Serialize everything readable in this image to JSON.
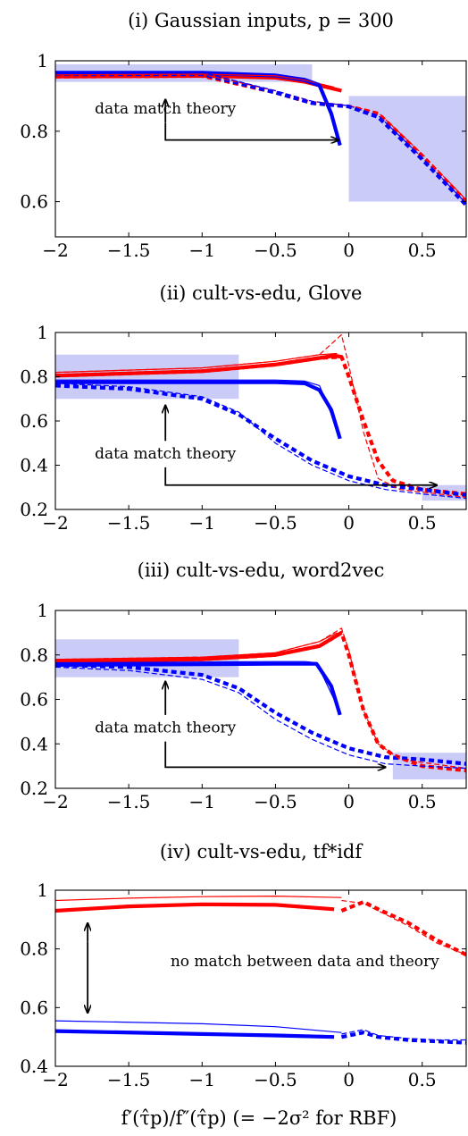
{
  "colors": {
    "red": "#ff0000",
    "blue": "#0000ff",
    "match_box": "#c8c8f8",
    "axis": "#000000"
  },
  "xlabel": "f′(τ̂p)/f″(τ̂p) (= −2σ² for RBF)",
  "chart_data": [
    {
      "type": "line",
      "title": "(i) Gaussian inputs, p = 300",
      "xlim": [
        -2,
        0.8
      ],
      "ylim": [
        0.5,
        1
      ],
      "xticks": [
        -2,
        -1.5,
        -1,
        -0.5,
        0,
        0.5
      ],
      "xtick_labels": [
        "−2",
        "−1.5",
        "−1",
        "−0.5",
        "0",
        "0.5"
      ],
      "yticks": [
        0.6,
        0.8,
        1
      ],
      "ytick_labels": [
        "0.6",
        "0.8",
        "1"
      ],
      "annotation": "data match theory",
      "annotation_kind": "two-boxes",
      "boxes": [
        {
          "x": [
            -2,
            -0.25
          ],
          "y": [
            0.94,
            0.99
          ]
        },
        {
          "x": [
            0,
            0.8
          ],
          "y": [
            0.6,
            0.9
          ]
        }
      ],
      "series": [
        {
          "color": "red",
          "style": "solid",
          "width": "thick",
          "x": [
            -2,
            -1,
            -0.5,
            -0.3,
            -0.1,
            -0.05
          ],
          "y": [
            0.955,
            0.957,
            0.952,
            0.94,
            0.92,
            0.915
          ]
        },
        {
          "color": "blue",
          "style": "solid",
          "width": "thick",
          "x": [
            -2,
            -1,
            -0.5,
            -0.3,
            -0.2,
            -0.12,
            -0.06
          ],
          "y": [
            0.965,
            0.965,
            0.958,
            0.945,
            0.93,
            0.85,
            0.76
          ]
        },
        {
          "color": "red",
          "style": "dashed",
          "width": "thick",
          "x": [
            -2,
            -1,
            -0.5,
            -0.25,
            0,
            0.2,
            0.5,
            0.8
          ],
          "y": [
            0.955,
            0.957,
            0.91,
            0.88,
            0.87,
            0.85,
            0.73,
            0.6
          ]
        },
        {
          "color": "blue",
          "style": "dashed",
          "width": "thick",
          "x": [
            -2,
            -1,
            -0.5,
            -0.25,
            0,
            0.2,
            0.5,
            0.8
          ],
          "y": [
            0.962,
            0.962,
            0.91,
            0.88,
            0.87,
            0.84,
            0.72,
            0.59
          ]
        },
        {
          "color": "red",
          "style": "solid",
          "width": "thin",
          "x": [
            -2,
            -1,
            -0.5,
            -0.3,
            -0.1
          ],
          "y": [
            0.96,
            0.962,
            0.957,
            0.945,
            0.925
          ]
        },
        {
          "color": "blue",
          "style": "solid",
          "width": "thin",
          "x": [
            -2,
            -1,
            -0.5,
            -0.3,
            -0.2,
            -0.08
          ],
          "y": [
            0.97,
            0.97,
            0.962,
            0.95,
            0.935,
            0.8
          ]
        },
        {
          "color": "red",
          "style": "dashed",
          "width": "thin",
          "x": [
            -2,
            -1,
            -0.5,
            -0.25,
            0,
            0.2,
            0.5,
            0.8
          ],
          "y": [
            0.96,
            0.962,
            0.915,
            0.885,
            0.872,
            0.853,
            0.735,
            0.605
          ]
        },
        {
          "color": "blue",
          "style": "dashed",
          "width": "thin",
          "x": [
            -2,
            -1,
            -0.5,
            -0.25,
            0,
            0.2,
            0.5,
            0.8
          ],
          "y": [
            0.967,
            0.967,
            0.915,
            0.885,
            0.872,
            0.845,
            0.725,
            0.595
          ]
        }
      ]
    },
    {
      "type": "line",
      "title": "(ii) cult-vs-edu, Glove",
      "xlim": [
        -2,
        0.8
      ],
      "ylim": [
        0.2,
        1
      ],
      "xticks": [
        -2,
        -1.5,
        -1,
        -0.5,
        0,
        0.5
      ],
      "xtick_labels": [
        "−2",
        "−1.5",
        "−1",
        "−0.5",
        "0",
        "0.5"
      ],
      "yticks": [
        0.2,
        0.4,
        0.6,
        0.8,
        1
      ],
      "ytick_labels": [
        "0.2",
        "0.4",
        "0.6",
        "0.8",
        "1"
      ],
      "annotation": "data match theory",
      "annotation_kind": "two-boxes",
      "boxes": [
        {
          "x": [
            -2,
            -0.75
          ],
          "y": [
            0.7,
            0.9
          ]
        },
        {
          "x": [
            0.5,
            0.8
          ],
          "y": [
            0.24,
            0.31
          ]
        }
      ],
      "series": [
        {
          "color": "red",
          "style": "solid",
          "width": "thick",
          "x": [
            -2,
            -1,
            -0.5,
            -0.2,
            -0.1,
            -0.05
          ],
          "y": [
            0.805,
            0.825,
            0.855,
            0.885,
            0.895,
            0.89
          ]
        },
        {
          "color": "blue",
          "style": "solid",
          "width": "thick",
          "x": [
            -2,
            -1,
            -0.5,
            -0.3,
            -0.2,
            -0.12,
            -0.06
          ],
          "y": [
            0.775,
            0.775,
            0.775,
            0.77,
            0.74,
            0.65,
            0.52
          ]
        },
        {
          "color": "red",
          "style": "dashed",
          "width": "thick",
          "x": [
            -2,
            -1,
            -0.5,
            -0.2,
            -0.05,
            0,
            0.1,
            0.2,
            0.3,
            0.5,
            0.8
          ],
          "y": [
            0.805,
            0.825,
            0.855,
            0.885,
            0.89,
            0.8,
            0.6,
            0.42,
            0.33,
            0.29,
            0.27
          ]
        },
        {
          "color": "blue",
          "style": "dashed",
          "width": "thick",
          "x": [
            -2,
            -1.5,
            -1,
            -0.75,
            -0.5,
            -0.25,
            0,
            0.25,
            0.5,
            0.8
          ],
          "y": [
            0.76,
            0.745,
            0.7,
            0.63,
            0.52,
            0.42,
            0.35,
            0.31,
            0.29,
            0.265
          ]
        },
        {
          "color": "red",
          "style": "solid",
          "width": "thin",
          "x": [
            -2,
            -1,
            -0.5,
            -0.2,
            -0.08
          ],
          "y": [
            0.82,
            0.84,
            0.87,
            0.9,
            0.905
          ]
        },
        {
          "color": "blue",
          "style": "solid",
          "width": "thin",
          "x": [
            -2,
            -1,
            -0.5,
            -0.3,
            -0.2,
            -0.1
          ],
          "y": [
            0.785,
            0.785,
            0.785,
            0.78,
            0.76,
            0.6
          ]
        },
        {
          "color": "red",
          "style": "dashed",
          "width": "thin",
          "x": [
            -2,
            -1,
            -0.5,
            -0.2,
            -0.05,
            0,
            0.1,
            0.2,
            0.35,
            0.8
          ],
          "y": [
            0.82,
            0.84,
            0.87,
            0.9,
            0.99,
            0.85,
            0.55,
            0.34,
            0.29,
            0.255
          ]
        },
        {
          "color": "blue",
          "style": "dashed",
          "width": "thin",
          "x": [
            -2,
            -1.5,
            -1,
            -0.75,
            -0.5,
            -0.25,
            0,
            0.25,
            0.5,
            0.8
          ],
          "y": [
            0.77,
            0.755,
            0.71,
            0.64,
            0.5,
            0.4,
            0.33,
            0.29,
            0.27,
            0.25
          ]
        }
      ]
    },
    {
      "type": "line",
      "title": "(iii) cult-vs-edu, word2vec",
      "xlim": [
        -2,
        0.8
      ],
      "ylim": [
        0.2,
        1
      ],
      "xticks": [
        -2,
        -1.5,
        -1,
        -0.5,
        0,
        0.5
      ],
      "xtick_labels": [
        "−2",
        "−1.5",
        "−1",
        "−0.5",
        "0",
        "0.5"
      ],
      "yticks": [
        0.2,
        0.4,
        0.6,
        0.8,
        1
      ],
      "ytick_labels": [
        "0.2",
        "0.4",
        "0.6",
        "0.8",
        "1"
      ],
      "annotation": "data match theory",
      "annotation_kind": "two-boxes",
      "boxes": [
        {
          "x": [
            -2,
            -0.75
          ],
          "y": [
            0.7,
            0.87
          ]
        },
        {
          "x": [
            0.3,
            0.8
          ],
          "y": [
            0.24,
            0.36
          ]
        }
      ],
      "series": [
        {
          "color": "red",
          "style": "solid",
          "width": "thick",
          "x": [
            -2,
            -1,
            -0.5,
            -0.2,
            -0.1,
            -0.05
          ],
          "y": [
            0.77,
            0.78,
            0.8,
            0.84,
            0.88,
            0.9
          ]
        },
        {
          "color": "blue",
          "style": "solid",
          "width": "thick",
          "x": [
            -2,
            -1,
            -0.5,
            -0.3,
            -0.22,
            -0.12,
            -0.06
          ],
          "y": [
            0.755,
            0.758,
            0.76,
            0.76,
            0.76,
            0.66,
            0.53
          ]
        },
        {
          "color": "red",
          "style": "dashed",
          "width": "thick",
          "x": [
            -2,
            -1,
            -0.5,
            -0.2,
            -0.05,
            0,
            0.1,
            0.2,
            0.3,
            0.5,
            0.8
          ],
          "y": [
            0.77,
            0.78,
            0.8,
            0.84,
            0.9,
            0.8,
            0.55,
            0.4,
            0.35,
            0.3,
            0.28
          ]
        },
        {
          "color": "blue",
          "style": "dashed",
          "width": "thick",
          "x": [
            -2,
            -1.5,
            -1,
            -0.75,
            -0.5,
            -0.25,
            0,
            0.25,
            0.5,
            0.8
          ],
          "y": [
            0.755,
            0.745,
            0.71,
            0.65,
            0.54,
            0.45,
            0.38,
            0.34,
            0.33,
            0.31
          ]
        },
        {
          "color": "red",
          "style": "solid",
          "width": "thin",
          "x": [
            -2,
            -1,
            -0.5,
            -0.2,
            -0.08
          ],
          "y": [
            0.78,
            0.79,
            0.81,
            0.86,
            0.9
          ]
        },
        {
          "color": "blue",
          "style": "solid",
          "width": "thin",
          "x": [
            -2,
            -1,
            -0.5,
            -0.3,
            -0.22,
            -0.1
          ],
          "y": [
            0.765,
            0.768,
            0.77,
            0.77,
            0.765,
            0.6
          ]
        },
        {
          "color": "red",
          "style": "dashed",
          "width": "thin",
          "x": [
            -2,
            -1,
            -0.5,
            -0.2,
            -0.05,
            0,
            0.1,
            0.2,
            0.35,
            0.8
          ],
          "y": [
            0.78,
            0.79,
            0.81,
            0.86,
            0.92,
            0.82,
            0.55,
            0.4,
            0.33,
            0.29
          ]
        },
        {
          "color": "blue",
          "style": "dashed",
          "width": "thin",
          "x": [
            -2,
            -1.5,
            -1,
            -0.75,
            -0.5,
            -0.25,
            0,
            0.25,
            0.5,
            0.8
          ],
          "y": [
            0.745,
            0.73,
            0.69,
            0.63,
            0.51,
            0.42,
            0.35,
            0.31,
            0.3,
            0.29
          ]
        }
      ]
    },
    {
      "type": "line",
      "title": "(iv) cult-vs-edu, tf*idf",
      "xlim": [
        -2,
        0.8
      ],
      "ylim": [
        0.4,
        1
      ],
      "xticks": [
        -2,
        -1.5,
        -1,
        -0.5,
        0,
        0.5
      ],
      "xtick_labels": [
        "−2",
        "−1.5",
        "−1",
        "−0.5",
        "0",
        "0.5"
      ],
      "yticks": [
        0.4,
        0.6,
        0.8,
        1
      ],
      "ytick_labels": [
        "0.4",
        "0.6",
        "0.8",
        "1"
      ],
      "annotation": "no match between data and theory",
      "annotation_kind": "double-arrow",
      "boxes": [],
      "series": [
        {
          "color": "red",
          "style": "solid",
          "width": "thick",
          "x": [
            -2,
            -1.5,
            -1,
            -0.5,
            -0.1
          ],
          "y": [
            0.93,
            0.945,
            0.952,
            0.95,
            0.935
          ]
        },
        {
          "color": "blue",
          "style": "solid",
          "width": "thick",
          "x": [
            -2,
            -1,
            -0.5,
            -0.1
          ],
          "y": [
            0.52,
            0.51,
            0.505,
            0.5
          ]
        },
        {
          "color": "red",
          "style": "dashed",
          "width": "thick",
          "x": [
            -0.05,
            0.1,
            0.2,
            0.4,
            0.6,
            0.8
          ],
          "y": [
            0.93,
            0.96,
            0.935,
            0.89,
            0.83,
            0.78
          ]
        },
        {
          "color": "blue",
          "style": "dashed",
          "width": "thick",
          "x": [
            -0.05,
            0.1,
            0.2,
            0.4,
            0.6,
            0.8
          ],
          "y": [
            0.5,
            0.515,
            0.5,
            0.49,
            0.485,
            0.48
          ]
        },
        {
          "color": "red",
          "style": "solid",
          "width": "thin",
          "x": [
            -2,
            -1.5,
            -1,
            -0.5,
            -0.05
          ],
          "y": [
            0.965,
            0.973,
            0.978,
            0.98,
            0.975
          ]
        },
        {
          "color": "blue",
          "style": "solid",
          "width": "thin",
          "x": [
            -2,
            -1,
            -0.5,
            -0.05
          ],
          "y": [
            0.555,
            0.545,
            0.535,
            0.515
          ]
        },
        {
          "color": "red",
          "style": "dashed",
          "width": "thin",
          "x": [
            -0.05,
            0.1,
            0.2,
            0.4,
            0.6,
            0.8
          ],
          "y": [
            0.965,
            0.955,
            0.93,
            0.88,
            0.82,
            0.78
          ]
        },
        {
          "color": "blue",
          "style": "dashed",
          "width": "thin",
          "x": [
            -0.05,
            0.1,
            0.2,
            0.4,
            0.6,
            0.8
          ],
          "y": [
            0.51,
            0.525,
            0.505,
            0.495,
            0.49,
            0.49
          ]
        }
      ]
    }
  ]
}
